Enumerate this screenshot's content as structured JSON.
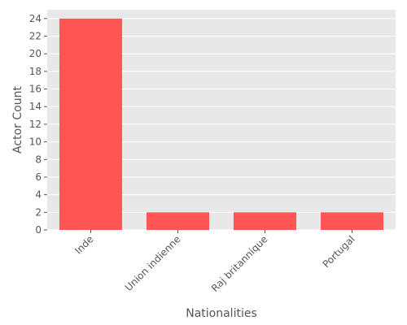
{
  "chart_data": {
    "type": "bar",
    "categories": [
      "Inde",
      "Union indienne",
      "Raj britannique",
      "Portugal"
    ],
    "values": [
      24,
      2,
      2,
      2
    ],
    "title": "",
    "xlabel": "Nationalities",
    "ylabel": "Actor Count",
    "ylim": [
      0,
      25
    ],
    "yticks": [
      0,
      2,
      4,
      6,
      8,
      10,
      12,
      14,
      16,
      18,
      20,
      22,
      24
    ],
    "grid": true,
    "x_tick_rotation": "45°"
  },
  "colors": {
    "bar": "#ff5555",
    "plot_background": "#e8e8e8",
    "grid": "#ffffff",
    "text": "#555555"
  }
}
